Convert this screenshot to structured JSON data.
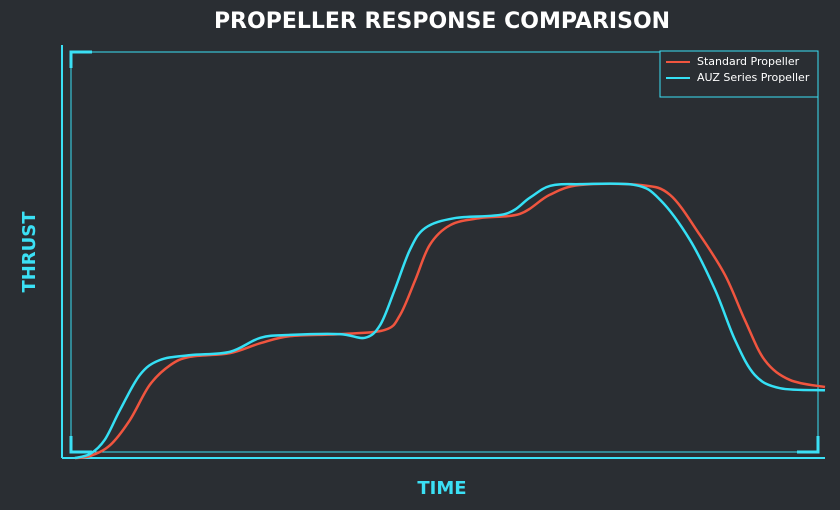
{
  "chart_data": {
    "type": "line",
    "title": "PROPELLER RESPONSE COMPARISON",
    "x_label": "TIME",
    "y_label": "THRUST",
    "xlim": [
      0,
      100
    ],
    "ylim": [
      0,
      100
    ],
    "legend": "upper right",
    "grid": false,
    "series": [
      {
        "name": "Standard Propeller",
        "color": "#f0553f",
        "x": [
          1.7,
          3.7,
          6.3,
          8.9,
          11.5,
          14.2,
          16.8,
          22.0,
          26.0,
          29.9,
          36.4,
          42.3,
          44.3,
          46.3,
          48.2,
          50.9,
          54.8,
          60.0,
          63.9,
          67.9,
          75.8,
          79.7,
          83.6,
          86.9,
          89.5,
          92.1,
          95.4,
          100
        ],
        "values": [
          0,
          0.5,
          3.1,
          9.2,
          17.7,
          22.5,
          24.5,
          25.4,
          27.8,
          29.5,
          30.0,
          31.0,
          34.6,
          43.1,
          51.6,
          56.4,
          58.1,
          59.1,
          63.7,
          66.1,
          66.1,
          63.7,
          54.0,
          44.3,
          33.4,
          23.7,
          18.9,
          17.2
        ]
      },
      {
        "name": "AUZ Series Propeller",
        "color": "#35e0f5",
        "x": [
          1.7,
          3.7,
          5.6,
          7.6,
          10.2,
          12.8,
          16.8,
          22.0,
          26.0,
          29.9,
          36.4,
          39.7,
          41.7,
          43.6,
          45.6,
          47.6,
          51.5,
          58.1,
          61.3,
          64.0,
          67.9,
          75.1,
          78.4,
          82.3,
          85.6,
          88.2,
          90.8,
          94.1,
          100
        ],
        "values": [
          0,
          1.0,
          4.4,
          11.6,
          20.1,
          23.7,
          24.9,
          25.7,
          29.1,
          29.8,
          30.0,
          29.1,
          32.2,
          40.7,
          50.4,
          55.7,
          58.1,
          59.1,
          63.0,
          65.9,
          66.3,
          66.1,
          62.5,
          52.8,
          40.7,
          28.6,
          20.1,
          16.9,
          16.4
        ]
      }
    ]
  }
}
